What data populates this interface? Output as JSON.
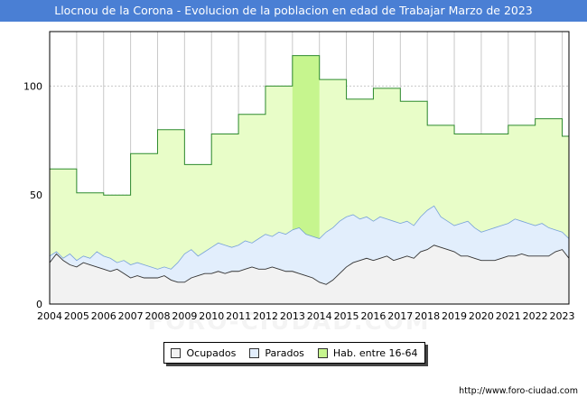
{
  "title": "Llocnou de la Corona - Evolucion de la poblacion en edad de Trabajar Marzo de 2023",
  "source": "http://www.foro-ciudad.com",
  "watermark": "FORO-CIUDAD.COM",
  "colors": {
    "title_bg": "#4a7fd4",
    "hab_fill": "#e8fdc8",
    "hab_highlight": "#c6f58e",
    "hab_line": "#2e8b2e",
    "parados_fill": "#e2eefc",
    "parados_line": "#4a7fd4",
    "ocupados_fill": "#f2f2f2",
    "ocupados_line": "#333333"
  },
  "chart_data": {
    "type": "area",
    "title": "Llocnou de la Corona - Evolucion de la poblacion en edad de Trabajar Marzo de 2023",
    "xlabel": "",
    "ylabel": "",
    "xlim": [
      2004.0,
      2023.25
    ],
    "ylim": [
      0,
      125
    ],
    "yticks": [
      0,
      50,
      100
    ],
    "xticks": [
      "2004",
      "2005",
      "2006",
      "2007",
      "2008",
      "2009",
      "2010",
      "2011",
      "2012",
      "2013",
      "2014",
      "2015",
      "2016",
      "2017",
      "2018",
      "2019",
      "2020",
      "2021",
      "2022",
      "2023"
    ],
    "grid": true,
    "legend_position": "bottom",
    "legend": [
      "Ocupados",
      "Parados",
      "Hab. entre 16-64"
    ],
    "series": [
      {
        "name": "Hab. entre 16-64",
        "kind": "step",
        "x": [
          2004,
          2005,
          2006,
          2007,
          2008,
          2009,
          2010,
          2011,
          2012,
          2013,
          2014,
          2015,
          2016,
          2017,
          2018,
          2019,
          2020,
          2021,
          2022,
          2023
        ],
        "values": [
          62,
          51,
          50,
          69,
          80,
          64,
          78,
          87,
          100,
          114,
          103,
          94,
          99,
          93,
          82,
          78,
          78,
          82,
          85,
          77
        ]
      },
      {
        "name": "Parados",
        "kind": "total",
        "x": [
          2004.0,
          2004.25,
          2004.5,
          2004.75,
          2005.0,
          2005.25,
          2005.5,
          2005.75,
          2006.0,
          2006.25,
          2006.5,
          2006.75,
          2007.0,
          2007.25,
          2007.5,
          2007.75,
          2008.0,
          2008.25,
          2008.5,
          2008.75,
          2009.0,
          2009.25,
          2009.5,
          2009.75,
          2010.0,
          2010.25,
          2010.5,
          2010.75,
          2011.0,
          2011.25,
          2011.5,
          2011.75,
          2012.0,
          2012.25,
          2012.5,
          2012.75,
          2013.0,
          2013.25,
          2013.5,
          2013.75,
          2014.0,
          2014.25,
          2014.5,
          2014.75,
          2015.0,
          2015.25,
          2015.5,
          2015.75,
          2016.0,
          2016.25,
          2016.5,
          2016.75,
          2017.0,
          2017.25,
          2017.5,
          2017.75,
          2018.0,
          2018.25,
          2018.5,
          2018.75,
          2019.0,
          2019.25,
          2019.5,
          2019.75,
          2020.0,
          2020.25,
          2020.5,
          2020.75,
          2021.0,
          2021.25,
          2021.5,
          2021.75,
          2022.0,
          2022.25,
          2022.5,
          2022.75,
          2023.0,
          2023.25
        ],
        "values": [
          22,
          24,
          21,
          23,
          20,
          22,
          21,
          24,
          22,
          21,
          19,
          20,
          18,
          19,
          18,
          17,
          16,
          17,
          16,
          19,
          23,
          25,
          22,
          24,
          26,
          28,
          27,
          26,
          27,
          29,
          28,
          30,
          32,
          31,
          33,
          32,
          34,
          35,
          32,
          31,
          30,
          33,
          35,
          38,
          40,
          41,
          39,
          40,
          38,
          40,
          39,
          38,
          37,
          38,
          36,
          40,
          43,
          45,
          40,
          38,
          36,
          37,
          38,
          35,
          33,
          34,
          35,
          36,
          37,
          39,
          38,
          37,
          36,
          37,
          35,
          34,
          33,
          30
        ]
      },
      {
        "name": "Ocupados",
        "kind": "line",
        "x": [
          2004.0,
          2004.25,
          2004.5,
          2004.75,
          2005.0,
          2005.25,
          2005.5,
          2005.75,
          2006.0,
          2006.25,
          2006.5,
          2006.75,
          2007.0,
          2007.25,
          2007.5,
          2007.75,
          2008.0,
          2008.25,
          2008.5,
          2008.75,
          2009.0,
          2009.25,
          2009.5,
          2009.75,
          2010.0,
          2010.25,
          2010.5,
          2010.75,
          2011.0,
          2011.25,
          2011.5,
          2011.75,
          2012.0,
          2012.25,
          2012.5,
          2012.75,
          2013.0,
          2013.25,
          2013.5,
          2013.75,
          2014.0,
          2014.25,
          2014.5,
          2014.75,
          2015.0,
          2015.25,
          2015.5,
          2015.75,
          2016.0,
          2016.25,
          2016.5,
          2016.75,
          2017.0,
          2017.25,
          2017.5,
          2017.75,
          2018.0,
          2018.25,
          2018.5,
          2018.75,
          2019.0,
          2019.25,
          2019.5,
          2019.75,
          2020.0,
          2020.25,
          2020.5,
          2020.75,
          2021.0,
          2021.25,
          2021.5,
          2021.75,
          2022.0,
          2022.25,
          2022.5,
          2022.75,
          2023.0,
          2023.25
        ],
        "values": [
          19,
          23,
          20,
          18,
          17,
          19,
          18,
          17,
          16,
          15,
          16,
          14,
          12,
          13,
          12,
          12,
          12,
          13,
          11,
          10,
          10,
          12,
          13,
          14,
          14,
          15,
          14,
          15,
          15,
          16,
          17,
          16,
          16,
          17,
          16,
          15,
          15,
          14,
          13,
          12,
          10,
          9,
          11,
          14,
          17,
          19,
          20,
          21,
          20,
          21,
          22,
          20,
          21,
          22,
          21,
          24,
          25,
          27,
          26,
          25,
          24,
          22,
          22,
          21,
          20,
          20,
          20,
          21,
          22,
          22,
          23,
          22,
          22,
          22,
          22,
          24,
          25,
          21
        ]
      }
    ]
  }
}
